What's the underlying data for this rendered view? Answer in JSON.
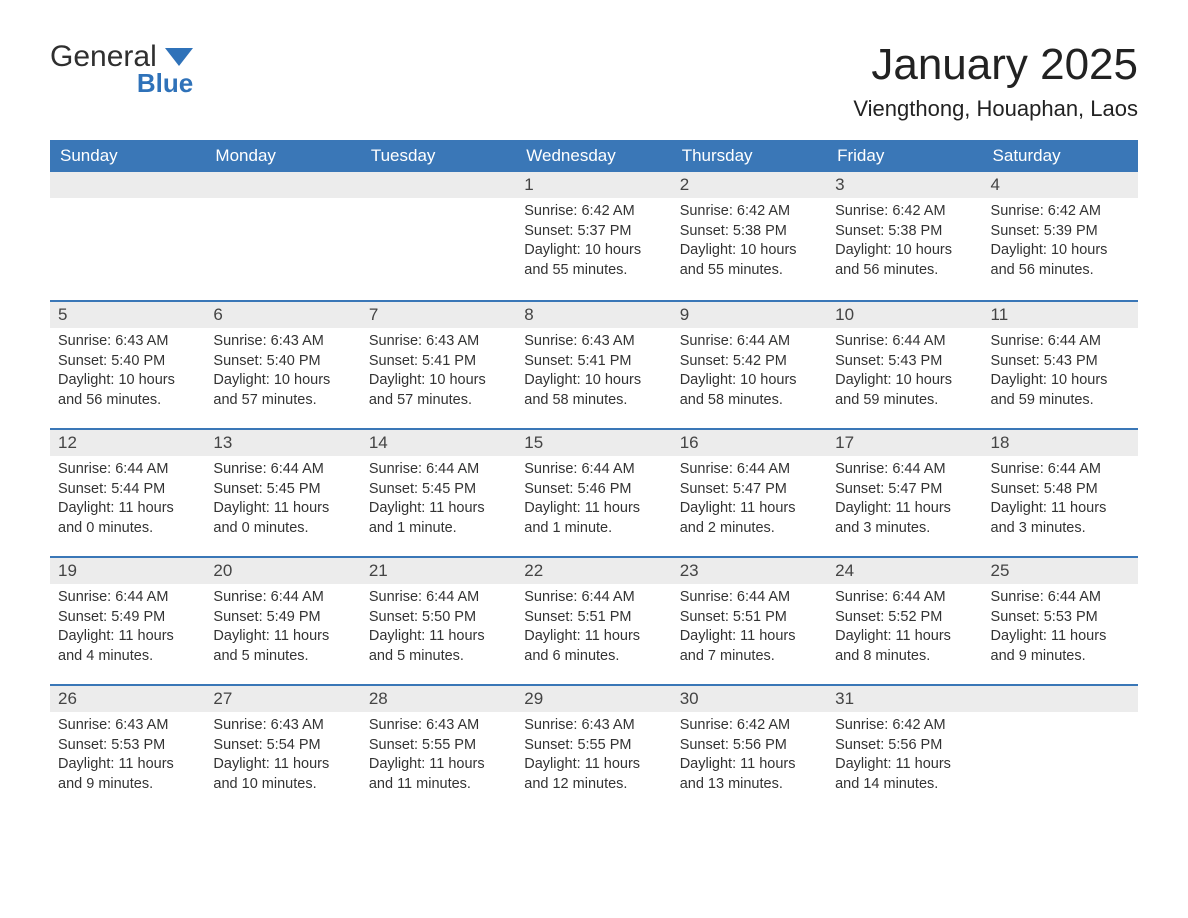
{
  "logo": {
    "word1": "General",
    "word2": "Blue"
  },
  "title": "January 2025",
  "location": "Viengthong, Houaphan, Laos",
  "colors": {
    "header_bg": "#3a77b7",
    "header_text": "#ffffff",
    "daynum_bg": "#ececec",
    "row_border": "#3a77b7",
    "body_text": "#333333",
    "page_bg": "#ffffff",
    "logo_accent": "#2f72b9"
  },
  "weekdays": [
    "Sunday",
    "Monday",
    "Tuesday",
    "Wednesday",
    "Thursday",
    "Friday",
    "Saturday"
  ],
  "weeks": [
    [
      {
        "day": "",
        "sunrise": "",
        "sunset": "",
        "daylight": ""
      },
      {
        "day": "",
        "sunrise": "",
        "sunset": "",
        "daylight": ""
      },
      {
        "day": "",
        "sunrise": "",
        "sunset": "",
        "daylight": ""
      },
      {
        "day": "1",
        "sunrise": "Sunrise: 6:42 AM",
        "sunset": "Sunset: 5:37 PM",
        "daylight": "Daylight: 10 hours and 55 minutes."
      },
      {
        "day": "2",
        "sunrise": "Sunrise: 6:42 AM",
        "sunset": "Sunset: 5:38 PM",
        "daylight": "Daylight: 10 hours and 55 minutes."
      },
      {
        "day": "3",
        "sunrise": "Sunrise: 6:42 AM",
        "sunset": "Sunset: 5:38 PM",
        "daylight": "Daylight: 10 hours and 56 minutes."
      },
      {
        "day": "4",
        "sunrise": "Sunrise: 6:42 AM",
        "sunset": "Sunset: 5:39 PM",
        "daylight": "Daylight: 10 hours and 56 minutes."
      }
    ],
    [
      {
        "day": "5",
        "sunrise": "Sunrise: 6:43 AM",
        "sunset": "Sunset: 5:40 PM",
        "daylight": "Daylight: 10 hours and 56 minutes."
      },
      {
        "day": "6",
        "sunrise": "Sunrise: 6:43 AM",
        "sunset": "Sunset: 5:40 PM",
        "daylight": "Daylight: 10 hours and 57 minutes."
      },
      {
        "day": "7",
        "sunrise": "Sunrise: 6:43 AM",
        "sunset": "Sunset: 5:41 PM",
        "daylight": "Daylight: 10 hours and 57 minutes."
      },
      {
        "day": "8",
        "sunrise": "Sunrise: 6:43 AM",
        "sunset": "Sunset: 5:41 PM",
        "daylight": "Daylight: 10 hours and 58 minutes."
      },
      {
        "day": "9",
        "sunrise": "Sunrise: 6:44 AM",
        "sunset": "Sunset: 5:42 PM",
        "daylight": "Daylight: 10 hours and 58 minutes."
      },
      {
        "day": "10",
        "sunrise": "Sunrise: 6:44 AM",
        "sunset": "Sunset: 5:43 PM",
        "daylight": "Daylight: 10 hours and 59 minutes."
      },
      {
        "day": "11",
        "sunrise": "Sunrise: 6:44 AM",
        "sunset": "Sunset: 5:43 PM",
        "daylight": "Daylight: 10 hours and 59 minutes."
      }
    ],
    [
      {
        "day": "12",
        "sunrise": "Sunrise: 6:44 AM",
        "sunset": "Sunset: 5:44 PM",
        "daylight": "Daylight: 11 hours and 0 minutes."
      },
      {
        "day": "13",
        "sunrise": "Sunrise: 6:44 AM",
        "sunset": "Sunset: 5:45 PM",
        "daylight": "Daylight: 11 hours and 0 minutes."
      },
      {
        "day": "14",
        "sunrise": "Sunrise: 6:44 AM",
        "sunset": "Sunset: 5:45 PM",
        "daylight": "Daylight: 11 hours and 1 minute."
      },
      {
        "day": "15",
        "sunrise": "Sunrise: 6:44 AM",
        "sunset": "Sunset: 5:46 PM",
        "daylight": "Daylight: 11 hours and 1 minute."
      },
      {
        "day": "16",
        "sunrise": "Sunrise: 6:44 AM",
        "sunset": "Sunset: 5:47 PM",
        "daylight": "Daylight: 11 hours and 2 minutes."
      },
      {
        "day": "17",
        "sunrise": "Sunrise: 6:44 AM",
        "sunset": "Sunset: 5:47 PM",
        "daylight": "Daylight: 11 hours and 3 minutes."
      },
      {
        "day": "18",
        "sunrise": "Sunrise: 6:44 AM",
        "sunset": "Sunset: 5:48 PM",
        "daylight": "Daylight: 11 hours and 3 minutes."
      }
    ],
    [
      {
        "day": "19",
        "sunrise": "Sunrise: 6:44 AM",
        "sunset": "Sunset: 5:49 PM",
        "daylight": "Daylight: 11 hours and 4 minutes."
      },
      {
        "day": "20",
        "sunrise": "Sunrise: 6:44 AM",
        "sunset": "Sunset: 5:49 PM",
        "daylight": "Daylight: 11 hours and 5 minutes."
      },
      {
        "day": "21",
        "sunrise": "Sunrise: 6:44 AM",
        "sunset": "Sunset: 5:50 PM",
        "daylight": "Daylight: 11 hours and 5 minutes."
      },
      {
        "day": "22",
        "sunrise": "Sunrise: 6:44 AM",
        "sunset": "Sunset: 5:51 PM",
        "daylight": "Daylight: 11 hours and 6 minutes."
      },
      {
        "day": "23",
        "sunrise": "Sunrise: 6:44 AM",
        "sunset": "Sunset: 5:51 PM",
        "daylight": "Daylight: 11 hours and 7 minutes."
      },
      {
        "day": "24",
        "sunrise": "Sunrise: 6:44 AM",
        "sunset": "Sunset: 5:52 PM",
        "daylight": "Daylight: 11 hours and 8 minutes."
      },
      {
        "day": "25",
        "sunrise": "Sunrise: 6:44 AM",
        "sunset": "Sunset: 5:53 PM",
        "daylight": "Daylight: 11 hours and 9 minutes."
      }
    ],
    [
      {
        "day": "26",
        "sunrise": "Sunrise: 6:43 AM",
        "sunset": "Sunset: 5:53 PM",
        "daylight": "Daylight: 11 hours and 9 minutes."
      },
      {
        "day": "27",
        "sunrise": "Sunrise: 6:43 AM",
        "sunset": "Sunset: 5:54 PM",
        "daylight": "Daylight: 11 hours and 10 minutes."
      },
      {
        "day": "28",
        "sunrise": "Sunrise: 6:43 AM",
        "sunset": "Sunset: 5:55 PM",
        "daylight": "Daylight: 11 hours and 11 minutes."
      },
      {
        "day": "29",
        "sunrise": "Sunrise: 6:43 AM",
        "sunset": "Sunset: 5:55 PM",
        "daylight": "Daylight: 11 hours and 12 minutes."
      },
      {
        "day": "30",
        "sunrise": "Sunrise: 6:42 AM",
        "sunset": "Sunset: 5:56 PM",
        "daylight": "Daylight: 11 hours and 13 minutes."
      },
      {
        "day": "31",
        "sunrise": "Sunrise: 6:42 AM",
        "sunset": "Sunset: 5:56 PM",
        "daylight": "Daylight: 11 hours and 14 minutes."
      },
      {
        "day": "",
        "sunrise": "",
        "sunset": "",
        "daylight": ""
      }
    ]
  ]
}
